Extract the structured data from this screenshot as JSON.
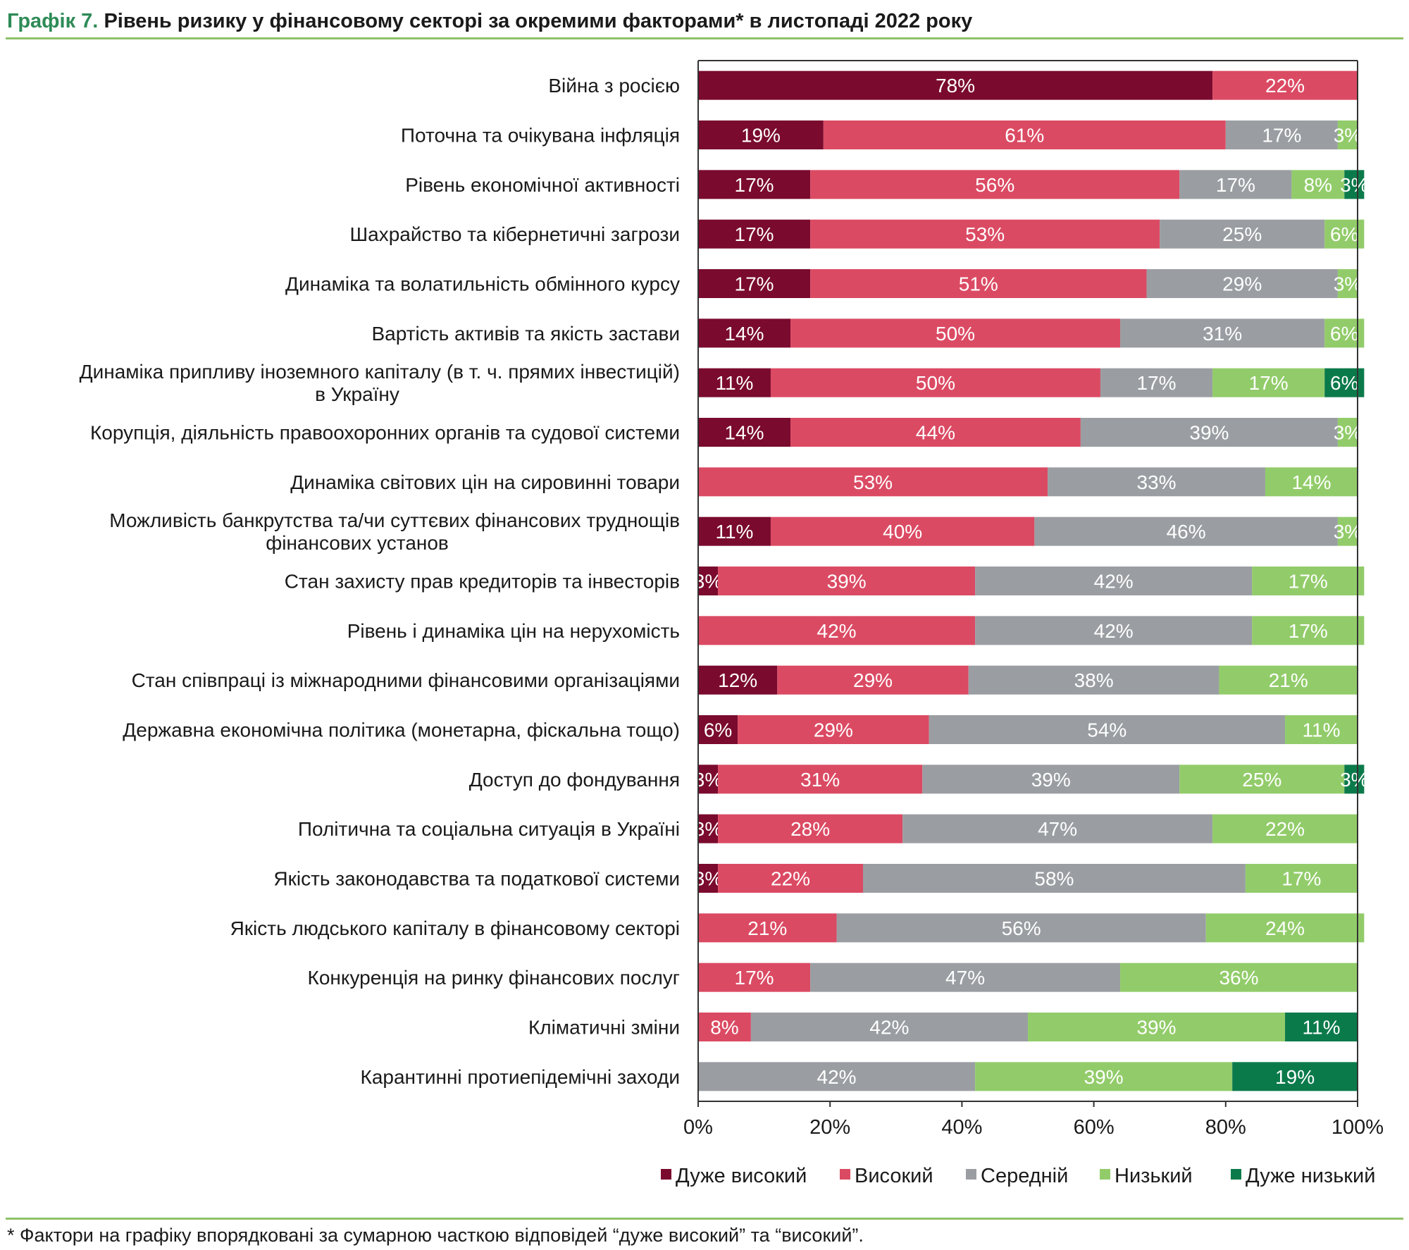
{
  "title": {
    "number": "Графік 7.",
    "text": "Рівень ризику у фінансовому секторі за окремими факторами* в листопаді 2022 року"
  },
  "footnote": "* Фактори на графіку впорядковані за сумарною часткою відповідей “дуже високий” та “високий”.",
  "chart_data": {
    "type": "bar",
    "orientation": "horizontal",
    "stacked": true,
    "unit": "%",
    "xlim": [
      0,
      100
    ],
    "x_ticks": [
      "0%",
      "20%",
      "40%",
      "60%",
      "80%",
      "100%"
    ],
    "legend_position": "bottom",
    "categories": [
      [
        "Війна з росією"
      ],
      [
        "Поточна та очікувана інфляція"
      ],
      [
        "Рівень економічної активності"
      ],
      [
        "Шахрайство та кібернетичні загрози"
      ],
      [
        "Динаміка та волатильність обмінного курсу"
      ],
      [
        "Вартість активів та якість застави"
      ],
      [
        "Динаміка припливу іноземного капіталу (в т. ч. прямих інвестицій)",
        "в Україну"
      ],
      [
        "Корупція, діяльність правоохоронних органів та судової системи"
      ],
      [
        "Динаміка світових цін на сировинні товари"
      ],
      [
        "Можливість банкрутства та/чи суттєвих фінансових труднощів",
        "фінансових установ"
      ],
      [
        "Стан захисту прав кредиторів та інвесторів"
      ],
      [
        "Рівень і динаміка цін на нерухомість"
      ],
      [
        "Стан співпраці із міжнародними фінансовими організаціями"
      ],
      [
        "Державна економічна політика (монетарна, фіскальна тощо)"
      ],
      [
        "Доступ до фондування"
      ],
      [
        "Політична та соціальна ситуація в Україні"
      ],
      [
        "Якість законодавства та податкової системи"
      ],
      [
        "Якість людського капіталу в фінансовому секторі"
      ],
      [
        "Конкуренція на ринку фінансових послуг"
      ],
      [
        "Кліматичні зміни"
      ],
      [
        "Карантинні протиепідемічні заходи"
      ]
    ],
    "series": [
      {
        "name": "Дуже високий",
        "color": "#7a0a2e",
        "values": [
          78,
          19,
          17,
          17,
          17,
          14,
          11,
          14,
          0,
          11,
          3,
          0,
          12,
          6,
          3,
          3,
          3,
          0,
          0,
          0,
          0
        ]
      },
      {
        "name": "Високий",
        "color": "#db4a63",
        "values": [
          22,
          61,
          56,
          53,
          51,
          50,
          50,
          44,
          53,
          40,
          39,
          42,
          29,
          29,
          31,
          28,
          22,
          21,
          17,
          8,
          0
        ]
      },
      {
        "name": "Середній",
        "color": "#9a9ea2",
        "values": [
          0,
          17,
          17,
          25,
          29,
          31,
          17,
          39,
          33,
          46,
          42,
          42,
          38,
          54,
          39,
          47,
          58,
          56,
          47,
          42,
          42
        ]
      },
      {
        "name": "Низький",
        "color": "#92cc6a",
        "values": [
          0,
          3,
          8,
          6,
          3,
          6,
          17,
          3,
          14,
          3,
          17,
          17,
          21,
          11,
          25,
          22,
          17,
          24,
          36,
          39,
          39
        ]
      },
      {
        "name": "Дуже низький",
        "color": "#0b7a4b",
        "values": [
          0,
          0,
          3,
          0,
          0,
          0,
          6,
          0,
          0,
          0,
          0,
          0,
          0,
          0,
          3,
          0,
          0,
          0,
          0,
          11,
          19
        ]
      }
    ]
  }
}
